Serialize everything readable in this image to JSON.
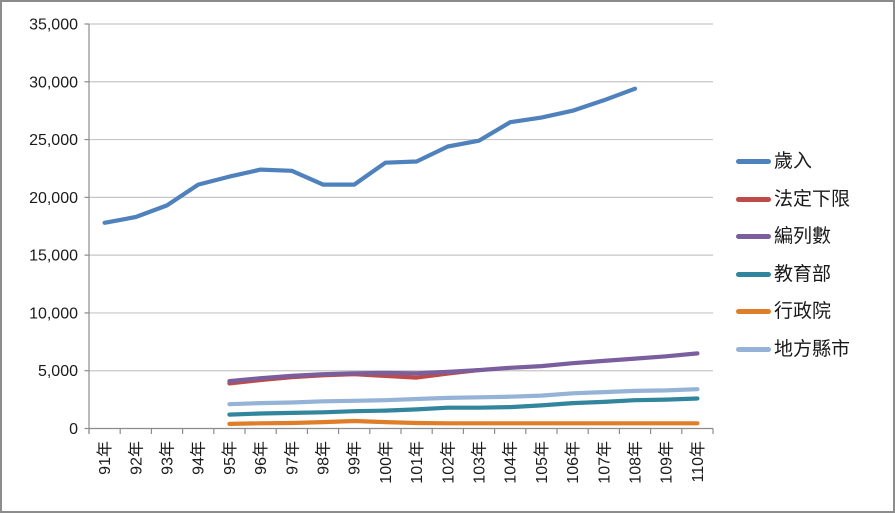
{
  "chart_data": {
    "type": "line",
    "title": "",
    "xlabel": "",
    "ylabel": "",
    "x_categories": [
      "91年",
      "92年",
      "93年",
      "94年",
      "95年",
      "96年",
      "97年",
      "98年",
      "99年",
      "100年",
      "101年",
      "102年",
      "103年",
      "104年",
      "105年",
      "106年",
      "107年",
      "108年",
      "109年",
      "110年"
    ],
    "y_axis": {
      "min": 0,
      "max": 35000,
      "step": 5000,
      "ticks": [
        {
          "value": 0,
          "label": "0"
        },
        {
          "value": 5000,
          "label": "5,000"
        },
        {
          "value": 10000,
          "label": "10,000"
        },
        {
          "value": 15000,
          "label": "15,000"
        },
        {
          "value": 20000,
          "label": "20,000"
        },
        {
          "value": 25000,
          "label": "25,000"
        },
        {
          "value": 30000,
          "label": "30,000"
        },
        {
          "value": 35000,
          "label": "35,000"
        }
      ]
    },
    "series": [
      {
        "name": "歲入",
        "color": "#4F81BD",
        "start_index": 0,
        "values": [
          17800,
          18300,
          19300,
          21100,
          21800,
          22400,
          22300,
          21100,
          21100,
          23000,
          23100,
          24400,
          24900,
          26500,
          26900,
          27500,
          28400,
          29400
        ]
      },
      {
        "name": "法定下限",
        "color": "#BE4B48",
        "start_index": 4,
        "values": [
          3900,
          4200,
          4450,
          4600,
          4700,
          4550,
          4400,
          4750,
          5050
        ]
      },
      {
        "name": "編列數",
        "color": "#7A5E9D",
        "start_index": 4,
        "values": [
          4100,
          4350,
          4550,
          4700,
          4780,
          4800,
          4780,
          4900,
          5050,
          5250,
          5400,
          5650,
          5850,
          6050,
          6250,
          6500
        ]
      },
      {
        "name": "教育部",
        "color": "#31859C",
        "start_index": 4,
        "values": [
          1200,
          1300,
          1350,
          1400,
          1500,
          1550,
          1650,
          1800,
          1800,
          1850,
          2000,
          2200,
          2300,
          2450,
          2500,
          2600
        ]
      },
      {
        "name": "行政院",
        "color": "#E07D28",
        "start_index": 4,
        "values": [
          400,
          450,
          480,
          550,
          650,
          550,
          480,
          450,
          450,
          450,
          450,
          450,
          450,
          450,
          450,
          450
        ]
      },
      {
        "name": "地方縣市",
        "color": "#95B3D7",
        "start_index": 4,
        "values": [
          2100,
          2200,
          2250,
          2350,
          2400,
          2450,
          2550,
          2650,
          2700,
          2750,
          2850,
          3050,
          3150,
          3250,
          3300,
          3400
        ]
      }
    ],
    "legend": {
      "position": "right",
      "labels": [
        "歲入",
        "法定下限",
        "編列數",
        "教育部",
        "行政院",
        "地方縣市"
      ]
    },
    "style": {
      "grid_on": true,
      "gridline_color": "#C6C6C6",
      "axis_color": "#8C8C8C",
      "tick_label_color": "#1a1a1a",
      "frame_border_color": "#8C8C8C",
      "background": "#FFFFFF"
    }
  }
}
